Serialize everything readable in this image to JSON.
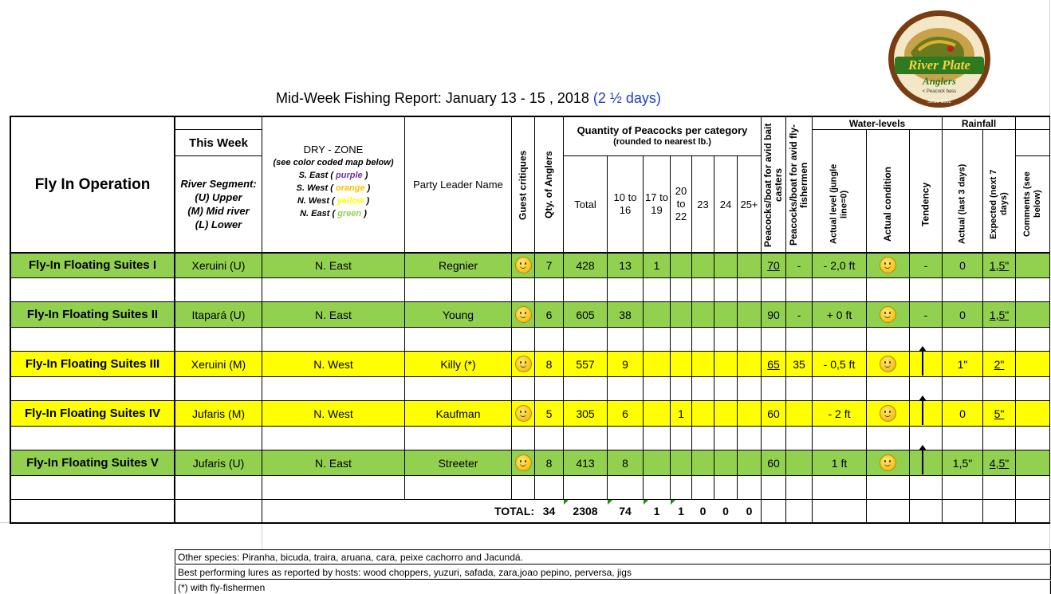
{
  "title": {
    "main": "Mid-Week Fishing Report: January 13 - 15 , 2018 ",
    "days": "(2 ½ days)"
  },
  "logo": {
    "top_text": "EXCLUSIVE AMAZON PRIVATE FISHERIES",
    "name1": "River Plate",
    "name2": "Anglers",
    "sub": "< Peacock bass",
    "since": "Since 1992"
  },
  "header": {
    "operation": "Fly In Operation",
    "this_week": "This Week",
    "river_segment": [
      "River Segment:",
      "(U) Upper",
      "(M) Mid river",
      "(L) Lower"
    ],
    "dry_zone": [
      "DRY - ZONE",
      "(see color coded map below)"
    ],
    "zones": [
      {
        "pre": "S. East ( ",
        "name": "purple",
        "post": " )",
        "color": "#7030a0"
      },
      {
        "pre": "S. West ( ",
        "name": "orange",
        "post": " )",
        "color": "#ffc000"
      },
      {
        "pre": "N. West ( ",
        "name": "yellow",
        "post": " )",
        "color": "#ffff00"
      },
      {
        "pre": "N. East ( ",
        "name": "green",
        "post": " )",
        "color": "#92d050"
      }
    ],
    "party_leader": "Party Leader Name",
    "guest_critiques": "Guest critiques",
    "qty_anglers": "Qty. of Anglers",
    "quantity_title": "Quantity of Peacocks per category",
    "quantity_sub": "(rounded to nearest lb.)",
    "total": "Total",
    "cat_10_16": "10 to 16",
    "cat_17_19": "17 to 19",
    "cat_20_22": "20 to 22",
    "cat_23": "23",
    "cat_24": "24",
    "cat_25": "25+",
    "pb_bait": "Peacocks/boat for avid bait casters",
    "pb_fly": "Peacocks/boat for avid fly-fishermen",
    "water_levels": "Water-levels",
    "actual_level": "Actual level (jungle line=0)",
    "actual_condition": "Actual condition",
    "tendency": "Tendency",
    "rainfall": "Rainfall",
    "rain_actual": "Actual (last 3 days)",
    "rain_expected": "Expected (next 7 days)",
    "comments": "Comments (see below)"
  },
  "rows": [
    {
      "name": "Fly-In Floating Suites I",
      "segment": "Xeruini (U)",
      "zone": "N. East",
      "leader": "Regnier",
      "anglers": "7",
      "total": "428",
      "c1016": "13",
      "c1719": "1",
      "c2022": "",
      "pb_bait": "70",
      "pb_fly": "-",
      "level": "- 2,0 ft",
      "tendency": "-",
      "rain": "0",
      "expected": "1,5\"",
      "color": "#92d050"
    },
    {
      "name": "Fly-In Floating Suites II",
      "segment": "Itapará (U)",
      "zone": "N. East",
      "leader": "Young",
      "anglers": "6",
      "total": "605",
      "c1016": "38",
      "c1719": "",
      "c2022": "",
      "pb_bait": "90",
      "pb_fly": "-",
      "level": "+ 0 ft",
      "tendency": "-",
      "rain": "0",
      "expected": "1,5\"",
      "color": "#92d050"
    },
    {
      "name": "Fly-In Floating Suites III",
      "segment": "Xeruini (M)",
      "zone": "N. West",
      "leader": "Killy (*)",
      "anglers": "8",
      "total": "557",
      "c1016": "9",
      "c1719": "",
      "c2022": "",
      "pb_bait": "65",
      "pb_fly": "35",
      "level": "- 0,5 ft",
      "tendency": "",
      "rain": "1\"",
      "expected": "2\"",
      "color": "#ffff00"
    },
    {
      "name": "Fly-In Floating Suites IV",
      "segment": "Jufaris (M)",
      "zone": "N. West",
      "leader": "Kaufman",
      "anglers": "5",
      "total": "305",
      "c1016": "6",
      "c1719": "",
      "c2022": "1",
      "pb_bait": "60",
      "pb_fly": "",
      "level": "- 2 ft",
      "tendency": "",
      "rain": "0",
      "expected": "5\"",
      "color": "#ffff00"
    },
    {
      "name": "Fly-In Floating Suites V",
      "segment": "Jufaris (U)",
      "zone": "N. East",
      "leader": "Streeter",
      "anglers": "8",
      "total": "413",
      "c1016": "8",
      "c1719": "",
      "c2022": "",
      "pb_bait": "60",
      "pb_fly": "",
      "level": "1 ft",
      "tendency": "",
      "rain": "1,5\"",
      "expected": "4,5\"",
      "color": "#92d050"
    }
  ],
  "totals": {
    "label": "TOTAL:",
    "anglers": "34",
    "total": "2308",
    "c1016": "74",
    "c1719": "1",
    "c2022": "1",
    "c23": "0",
    "c24": "0",
    "c25": "0"
  },
  "notes": [
    "Other species: Piranha, bicuda, traira, aruana, cara, peixe cachorro and Jacundá.",
    "Best performing lures as reported by hosts: wood choppers, yuzuri, safada, zara,joao pepino,  perversa,  jigs",
    "(*) with fly-fishermen"
  ]
}
